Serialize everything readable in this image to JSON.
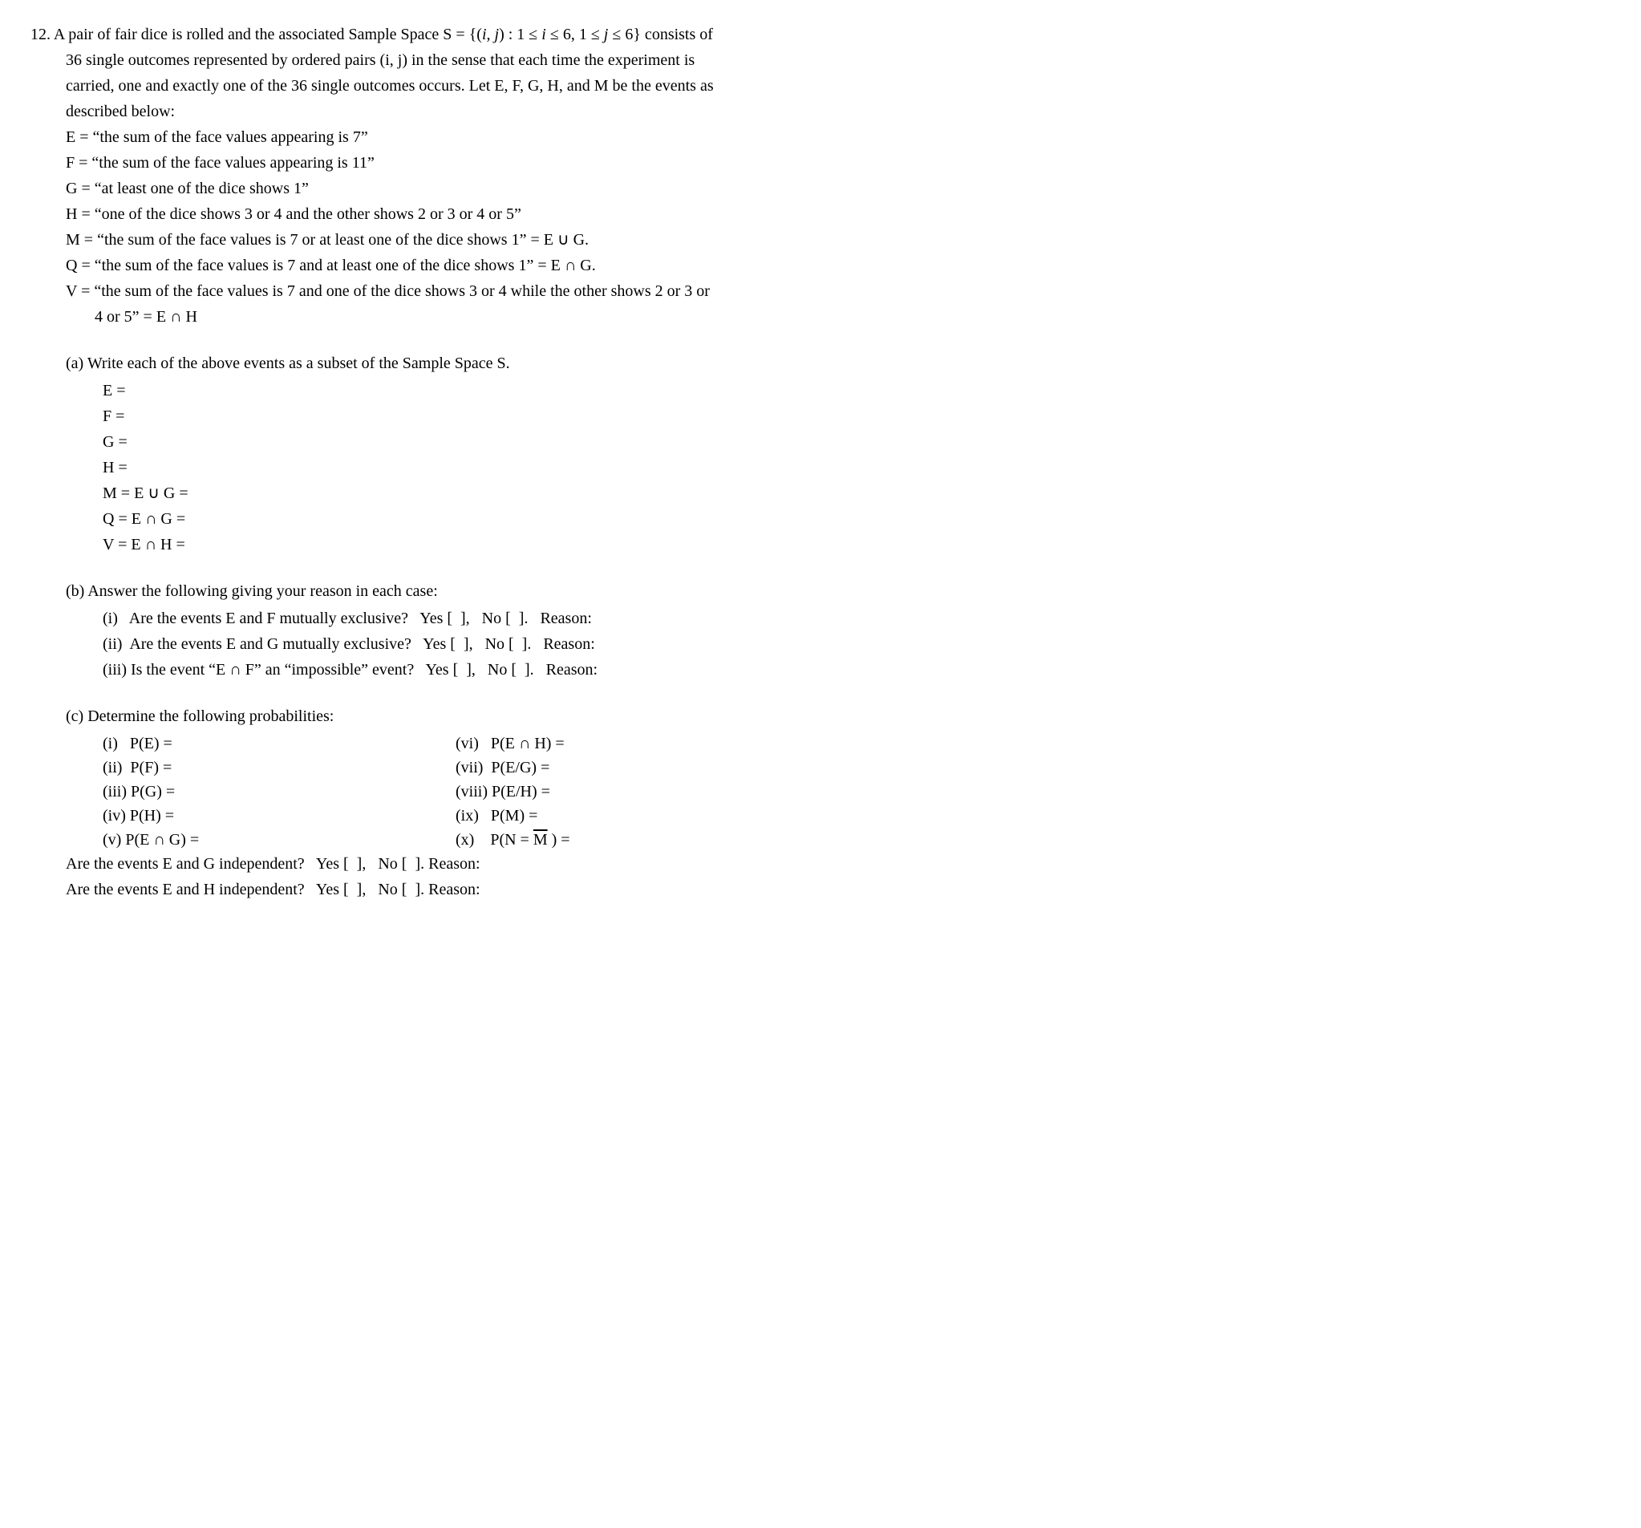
{
  "problem_number": "12.",
  "intro_line1_a": "12. A pair of fair dice is rolled and the associated Sample Space S = {(",
  "intro_line1_b": ") : 1 ≤ ",
  "intro_line1_c": " ≤ 6, 1 ≤ ",
  "intro_line1_d": " ≤ 6} consists of",
  "i_var": "i",
  "j_var": "j",
  "ij_var": "i, j",
  "intro_line2": "36 single outcomes represented by ordered pairs (i, j) in the sense that each time the experiment is",
  "intro_line3": "carried, one and exactly one of the 36 single outcomes occurs. Let E, F, G, H, and M be the events as",
  "intro_line4": "described below:",
  "def_E": "E = “the sum of the face values appearing is 7”",
  "def_F": "F = “the sum of the face values appearing is 11”",
  "def_G": "G = “at least one of the dice shows 1”",
  "def_H": "H = “one of the dice shows 3 or 4 and the other shows 2 or 3 or 4 or 5”",
  "def_M": "M = “the sum of the face values is 7 or at least one of the dice shows 1” = E ∪ G.",
  "def_Q": "Q = “the sum of the face values is 7 and at least one of the dice shows 1” = E ∩ G.",
  "def_V1": "V = “the sum of the face values is 7 and one of the dice shows 3 or 4 while the other shows 2 or 3 or",
  "def_V2": "4 or 5” = E ∩ H",
  "part_a": "(a) Write each of the above events as a subset of the Sample Space S.",
  "a_E": "E =",
  "a_F": "F =",
  "a_G": "G =",
  "a_H": "H =",
  "a_M": "M = E ∪ G =",
  "a_Q": "Q = E ∩ G =",
  "a_V": "V = E ∩ H =",
  "part_b": "(b) Answer the following giving your reason in each case:",
  "b_i": "(i)   Are the events E and F mutually exclusive?   Yes [  ],   No [  ].   Reason:",
  "b_ii": "(ii)  Are the events E and G mutually exclusive?   Yes [  ],   No [  ].   Reason:",
  "b_iii": "(iii) Is the event “E ∩ F” an “impossible” event?   Yes [  ],   No [  ].   Reason:",
  "part_c": "(c) Determine the following probabilities:",
  "c_i": "(i)   P(E) =",
  "c_ii": "(ii)  P(F) =",
  "c_iii": "(iii) P(G) =",
  "c_iv": "(iv) P(H) =",
  "c_v": "(v) P(E ∩ G) =",
  "c_vi": "(vi)   P(E ∩ H) =",
  "c_vii": "(vii)  P(E/G) =",
  "c_viii": "(viii) P(E/H) =",
  "c_ix": "(ix)   P(M) =",
  "c_x_a": "(x)    P(N = ",
  "c_x_m": "M",
  "c_x_b": " ) =",
  "indep_EG": "Are the events E and G independent?   Yes [  ],   No [  ]. Reason:",
  "indep_EH": "Are the events E and H independent?   Yes [  ],   No [  ]. Reason:"
}
